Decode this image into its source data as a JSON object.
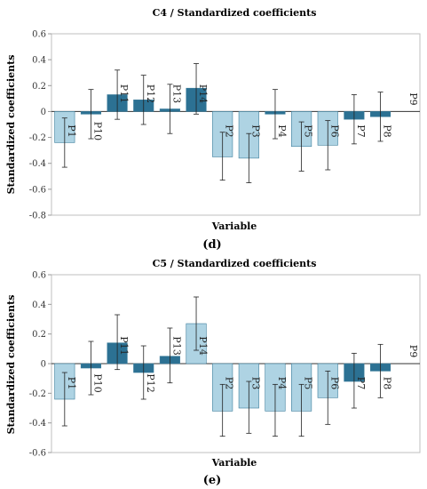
{
  "chart_data": [
    {
      "type": "bar",
      "title": "C4 / Standardized coefficients",
      "xlabel": "Variable",
      "ylabel": "Standardized coefficients",
      "panel_label": "(d)",
      "ylim": [
        -0.8,
        0.6
      ],
      "ticks": [
        "-0.8",
        "-0.6",
        "-0.4",
        "-0.2",
        "0",
        "0.2",
        "0.4",
        "0.6"
      ],
      "grid": false,
      "colors": {
        "light": "#aed3e3",
        "dark": "#2c7193"
      },
      "categories": [
        "P1",
        "P10",
        "P11",
        "P12",
        "P13",
        "P14",
        "P2",
        "P3",
        "P4",
        "P5",
        "P6",
        "P7",
        "P8",
        "P9"
      ],
      "values": [
        -0.24,
        -0.02,
        0.13,
        0.09,
        0.02,
        0.18,
        -0.35,
        -0.36,
        -0.02,
        -0.27,
        -0.26,
        -0.06,
        -0.04,
        0
      ],
      "error_low": [
        -0.43,
        -0.21,
        -0.06,
        -0.1,
        -0.17,
        -0.02,
        -0.53,
        -0.55,
        -0.21,
        -0.46,
        -0.45,
        -0.25,
        -0.23,
        0
      ],
      "error_high": [
        -0.05,
        0.17,
        0.32,
        0.28,
        0.21,
        0.37,
        -0.16,
        -0.17,
        0.17,
        -0.08,
        -0.07,
        0.13,
        0.15,
        0
      ],
      "shade": [
        "light",
        "dark",
        "dark",
        "dark",
        "dark",
        "dark",
        "light",
        "light",
        "dark",
        "light",
        "light",
        "dark",
        "dark",
        "light"
      ]
    },
    {
      "type": "bar",
      "title": "C5 / Standardized coefficients",
      "xlabel": "Variable",
      "ylabel": "Standardized coefficients",
      "panel_label": "(e)",
      "ylim": [
        -0.6,
        0.6
      ],
      "ticks": [
        "-0.6",
        "-0.4",
        "-0.2",
        "0",
        "0.2",
        "0.4",
        "0.6"
      ],
      "grid": false,
      "colors": {
        "light": "#aed3e3",
        "dark": "#2c7193"
      },
      "categories": [
        "P1",
        "P10",
        "P11",
        "P12",
        "P13",
        "P14",
        "P2",
        "P3",
        "P4",
        "P5",
        "P6",
        "P7",
        "P8",
        "P9"
      ],
      "values": [
        -0.24,
        -0.03,
        0.14,
        -0.06,
        0.05,
        0.27,
        -0.32,
        -0.3,
        -0.32,
        -0.32,
        -0.23,
        -0.12,
        -0.05,
        0
      ],
      "error_low": [
        -0.42,
        -0.21,
        -0.04,
        -0.24,
        -0.13,
        0.09,
        -0.49,
        -0.47,
        -0.49,
        -0.49,
        -0.41,
        -0.3,
        -0.23,
        0
      ],
      "error_high": [
        -0.06,
        0.15,
        0.33,
        0.12,
        0.24,
        0.45,
        -0.14,
        -0.12,
        -0.14,
        -0.14,
        -0.05,
        0.07,
        0.13,
        0
      ],
      "shade": [
        "light",
        "dark",
        "dark",
        "dark",
        "dark",
        "light",
        "light",
        "light",
        "light",
        "light",
        "light",
        "dark",
        "dark",
        "light"
      ]
    }
  ]
}
